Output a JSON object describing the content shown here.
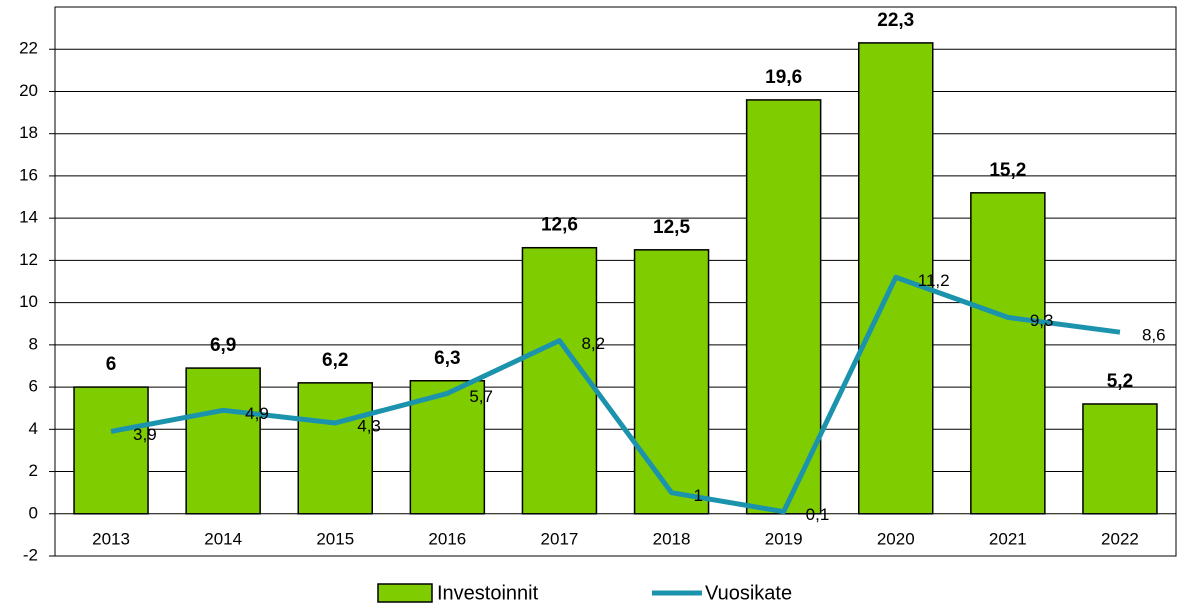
{
  "chart_data": {
    "type": "bar",
    "categories": [
      "2013",
      "2014",
      "2015",
      "2016",
      "2017",
      "2018",
      "2019",
      "2020",
      "2021",
      "2022"
    ],
    "series": [
      {
        "name": "Investoinnit",
        "type": "bar",
        "color": "#7fcc00",
        "values": [
          6,
          6.9,
          6.2,
          6.3,
          12.6,
          12.5,
          19.6,
          22.3,
          15.2,
          5.2
        ],
        "value_labels": [
          "6",
          "6,9",
          "6,2",
          "6,3",
          "12,6",
          "12,5",
          "19,6",
          "22,3",
          "15,2",
          "5,2"
        ]
      },
      {
        "name": "Vuosikate",
        "type": "line",
        "color": "#1b93ad",
        "values": [
          3.9,
          4.9,
          4.3,
          5.7,
          8.2,
          1,
          0.1,
          11.2,
          9.3,
          8.6
        ],
        "value_labels": [
          "3,9",
          "4,9",
          "4,3",
          "5,7",
          "8,2",
          "1",
          "0,1",
          "11,2",
          "9,3",
          "8,6"
        ]
      }
    ],
    "ylim": [
      -2,
      24
    ],
    "yticks": [
      -2,
      0,
      2,
      4,
      6,
      8,
      10,
      12,
      14,
      16,
      18,
      20,
      22
    ],
    "grid": true,
    "legend": "bottom"
  }
}
